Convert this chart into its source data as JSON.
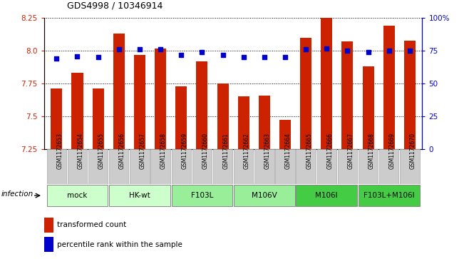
{
  "title": "GDS4998 / 10346914",
  "samples": [
    "GSM1172653",
    "GSM1172654",
    "GSM1172655",
    "GSM1172656",
    "GSM1172657",
    "GSM1172658",
    "GSM1172659",
    "GSM1172660",
    "GSM1172661",
    "GSM1172662",
    "GSM1172663",
    "GSM1172664",
    "GSM1172665",
    "GSM1172666",
    "GSM1172667",
    "GSM1172668",
    "GSM1172669",
    "GSM1172670"
  ],
  "bar_values": [
    7.71,
    7.83,
    7.71,
    8.13,
    7.97,
    8.02,
    7.73,
    7.92,
    7.75,
    7.65,
    7.66,
    7.47,
    8.1,
    8.26,
    8.07,
    7.88,
    8.19,
    8.08
  ],
  "percentile_values": [
    69,
    71,
    70,
    76,
    76,
    76,
    72,
    74,
    72,
    70,
    70,
    70,
    76,
    77,
    75,
    74,
    75,
    75
  ],
  "groups": [
    {
      "label": "mock",
      "start": 0,
      "end": 2,
      "color": "#ccffcc"
    },
    {
      "label": "HK-wt",
      "start": 3,
      "end": 5,
      "color": "#ccffcc"
    },
    {
      "label": "F103L",
      "start": 6,
      "end": 8,
      "color": "#99ee99"
    },
    {
      "label": "M106V",
      "start": 9,
      "end": 11,
      "color": "#99ee99"
    },
    {
      "label": "M106I",
      "start": 12,
      "end": 14,
      "color": "#44cc44"
    },
    {
      "label": "F103L+M106I",
      "start": 15,
      "end": 17,
      "color": "#44cc44"
    }
  ],
  "ylim_left": [
    7.25,
    8.25
  ],
  "ylim_right": [
    0,
    100
  ],
  "yticks_left": [
    7.25,
    7.5,
    7.75,
    8.0,
    8.25
  ],
  "yticks_right": [
    0,
    25,
    50,
    75,
    100
  ],
  "bar_color": "#cc2200",
  "dot_color": "#0000cc",
  "bar_bottom": 7.25,
  "xlabel_infection": "infection",
  "legend_bar": "transformed count",
  "legend_dot": "percentile rank within the sample",
  "gsm_box_color": "#cccccc",
  "gsm_box_edge": "#aaaaaa"
}
